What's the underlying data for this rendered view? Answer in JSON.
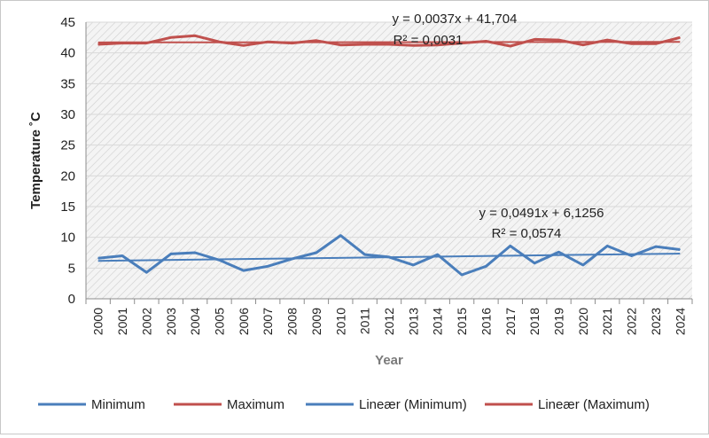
{
  "chart_data": {
    "type": "line",
    "title": "",
    "xlabel": "Year",
    "ylabel": "Temperature ˚C",
    "ylim": [
      0,
      45
    ],
    "yticks": [
      "0",
      "5",
      "10",
      "15",
      "20",
      "25",
      "30",
      "35",
      "40",
      "45"
    ],
    "categories": [
      "2000",
      "2001",
      "2002",
      "2003",
      "2004",
      "2005",
      "2006",
      "2007",
      "2008",
      "2009",
      "2010",
      "2011",
      "2012",
      "2013",
      "2014",
      "2015",
      "2016",
      "2017",
      "2018",
      "2019",
      "2020",
      "2021",
      "2022",
      "2023",
      "2024"
    ],
    "series": [
      {
        "name": "Minimum",
        "color": "#4a7ebb",
        "values": [
          6.6,
          7.0,
          4.3,
          7.3,
          7.5,
          6.3,
          4.6,
          5.3,
          6.5,
          7.5,
          10.3,
          7.2,
          6.8,
          5.5,
          7.2,
          3.9,
          5.3,
          8.6,
          5.8,
          7.6,
          5.5,
          8.6,
          7.0,
          8.5,
          8.0
        ]
      },
      {
        "name": "Maximum",
        "color": "#c0504d",
        "values": [
          41.4,
          41.6,
          41.6,
          42.5,
          42.8,
          41.8,
          41.2,
          41.8,
          41.6,
          42.0,
          41.3,
          41.4,
          41.4,
          41.2,
          41.3,
          41.6,
          41.9,
          41.1,
          42.2,
          42.1,
          41.3,
          42.1,
          41.5,
          41.5,
          42.5
        ]
      }
    ],
    "trendlines": [
      {
        "name": "Lineær (Minimum)",
        "color": "#4a7ebb",
        "slope": 0.0491,
        "intercept": 6.1256,
        "equation": "y = 0,0491x + 6,1256",
        "r2": "R² = 0,0574"
      },
      {
        "name": "Lineær (Maximum)",
        "color": "#c0504d",
        "slope": 0.0037,
        "intercept": 41.704,
        "equation": "y = 0,0037x + 41,704",
        "r2": "R² = 0,0031"
      }
    ],
    "grid": true,
    "legend_position": "bottom"
  }
}
